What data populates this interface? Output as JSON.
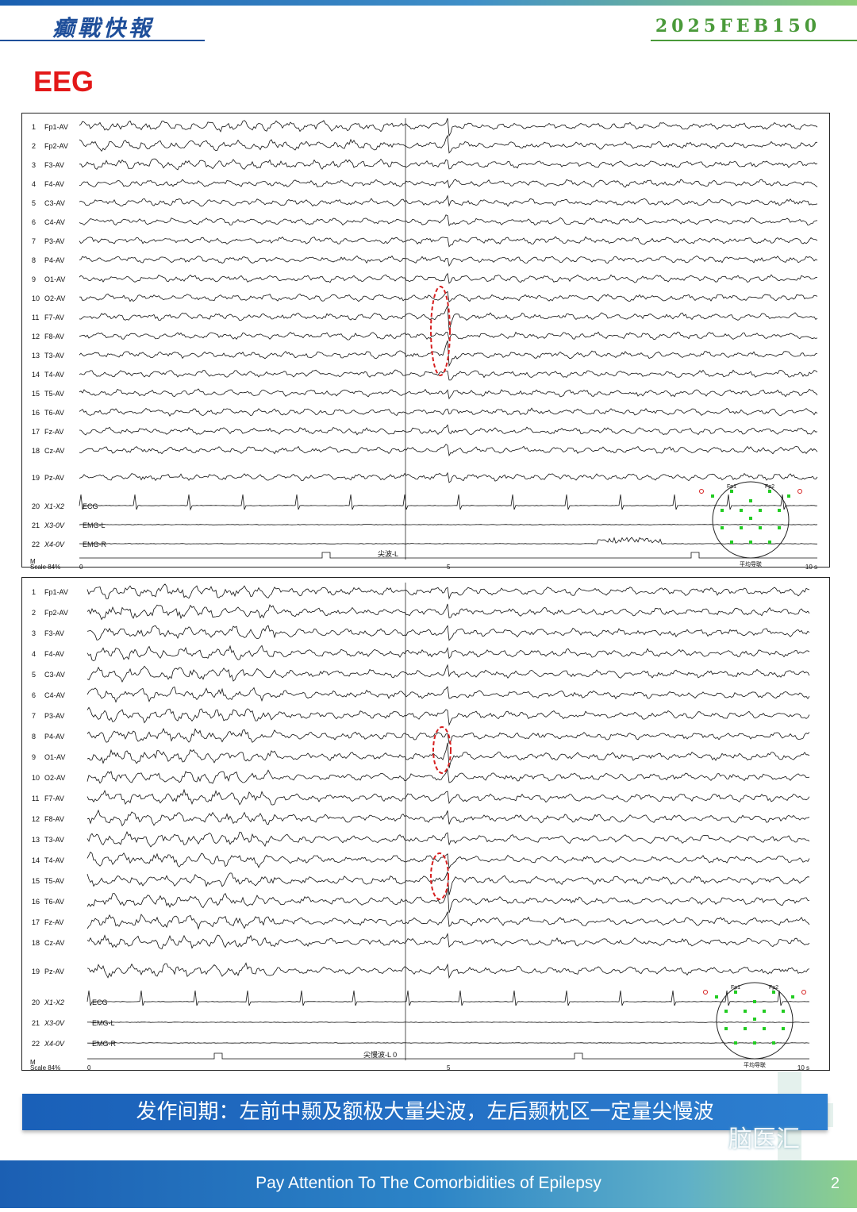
{
  "header": {
    "brand": "癫戰快報",
    "issue": "2025FEB150"
  },
  "title": "EEG",
  "panels": [
    {
      "channels": [
        "Fp1-AV",
        "Fp2-AV",
        "F3-AV",
        "F4-AV",
        "C3-AV",
        "C4-AV",
        "P3-AV",
        "P4-AV",
        "O1-AV",
        "O2-AV",
        "F7-AV",
        "F8-AV",
        "T3-AV",
        "T4-AV",
        "T5-AV",
        "T6-AV",
        "Fz-AV",
        "Cz-AV",
        "Pz-AV",
        "X1-X2",
        "X3-0V",
        "X4-0V"
      ],
      "aux_labels": [
        "ECG",
        "EMG-L",
        "EMG-R"
      ],
      "event_label": "尖波-L",
      "event_value": "",
      "scale_label": "Scale  84%",
      "scale_marker": "M",
      "time_ticks": [
        "0",
        "5",
        "10 s"
      ],
      "head_labels": [
        "Fp1",
        "Fp2"
      ],
      "head_caption": "平均导联"
    },
    {
      "channels": [
        "Fp1-AV",
        "Fp2-AV",
        "F3-AV",
        "F4-AV",
        "C3-AV",
        "C4-AV",
        "P3-AV",
        "P4-AV",
        "O1-AV",
        "O2-AV",
        "F7-AV",
        "F8-AV",
        "T3-AV",
        "T4-AV",
        "T5-AV",
        "T6-AV",
        "Fz-AV",
        "Cz-AV",
        "Pz-AV",
        "X1-X2",
        "X3-0V",
        "X4-0V"
      ],
      "aux_labels": [
        "ECG",
        "EMG-L",
        "EMG-R"
      ],
      "event_label": "尖慢波-L",
      "event_value": "0",
      "scale_label": "Scale  84%",
      "scale_marker": "M",
      "time_ticks": [
        "0",
        "5",
        "10 s"
      ],
      "head_labels": [
        "Fp1",
        "Fp2"
      ],
      "head_caption": "平均导联"
    }
  ],
  "caption": "发作间期：左前中颞及额极大量尖波，左后颞枕区一定量尖慢波",
  "watermark": "脑医汇",
  "footer": {
    "text": "Pay Attention To The Comorbidities of Epilepsy",
    "page": "2"
  },
  "colors": {
    "brand": "#1f4f9a",
    "issue": "#4a9a3a",
    "title": "#e31818",
    "caption_band": "#1a60b8",
    "annotation": "#d62020",
    "electrode": "#22cc22"
  }
}
